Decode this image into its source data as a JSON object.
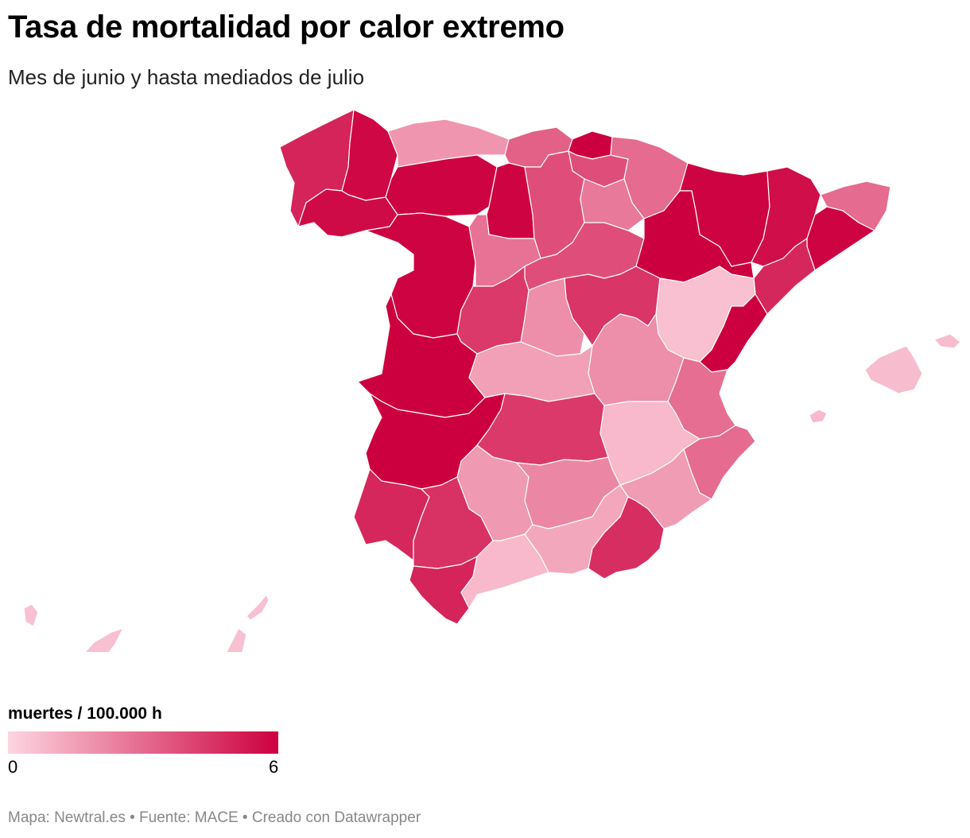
{
  "title": "Tasa de mortalidad por calor extremo",
  "subtitle": "Mes de junio y hasta mediados de julio",
  "legend": {
    "title": "muertes / 100.000 h",
    "min_label": "0",
    "max_label": "6",
    "min": 0,
    "max": 6,
    "color_low": "#fdd5e0",
    "color_high": "#cd003f"
  },
  "footer": "Mapa: Newtral.es • Fuente: MACE • Creado con Datawrapper",
  "regions": [
    {
      "id": "galicia-norte",
      "value": 5.0
    },
    {
      "id": "galicia-lugo",
      "value": 5.8
    },
    {
      "id": "galicia-sur",
      "value": 5.7
    },
    {
      "id": "asturias",
      "value": 1.8
    },
    {
      "id": "cantabria",
      "value": 3.3
    },
    {
      "id": "bizkaia",
      "value": 6.0
    },
    {
      "id": "alava-gipuzkoa",
      "value": 3.8
    },
    {
      "id": "navarra",
      "value": 3.0
    },
    {
      "id": "leon",
      "value": 5.9
    },
    {
      "id": "palencia",
      "value": 5.9
    },
    {
      "id": "burgos",
      "value": 3.8
    },
    {
      "id": "zamora-salamanca",
      "value": 5.9
    },
    {
      "id": "valladolid",
      "value": 2.8
    },
    {
      "id": "soria",
      "value": 2.6
    },
    {
      "id": "segovia",
      "value": 3.8
    },
    {
      "id": "huesca",
      "value": 5.9
    },
    {
      "id": "zaragoza",
      "value": 6.0
    },
    {
      "id": "lleida",
      "value": 5.6
    },
    {
      "id": "girona",
      "value": 3.0
    },
    {
      "id": "barcelona",
      "value": 5.9
    },
    {
      "id": "tarragona",
      "value": 4.9
    },
    {
      "id": "teruel",
      "value": 0.6
    },
    {
      "id": "castellon",
      "value": 6.0
    },
    {
      "id": "guadalajara",
      "value": 4.5
    },
    {
      "id": "madrid",
      "value": 2.0
    },
    {
      "id": "avila",
      "value": 4.4
    },
    {
      "id": "caceres",
      "value": 6.0
    },
    {
      "id": "toledo",
      "value": 1.5
    },
    {
      "id": "cuenca",
      "value": 2.0
    },
    {
      "id": "valencia",
      "value": 2.9
    },
    {
      "id": "badajoz",
      "value": 6.0
    },
    {
      "id": "ciudad-real",
      "value": 4.4
    },
    {
      "id": "albacete",
      "value": 0.8
    },
    {
      "id": "alicante",
      "value": 3.0
    },
    {
      "id": "huelva",
      "value": 4.9
    },
    {
      "id": "sevilla",
      "value": 4.6
    },
    {
      "id": "cordoba",
      "value": 1.7
    },
    {
      "id": "jaen",
      "value": 2.2
    },
    {
      "id": "murcia",
      "value": 1.6
    },
    {
      "id": "cadiz",
      "value": 5.0
    },
    {
      "id": "malaga",
      "value": 0.8
    },
    {
      "id": "granada",
      "value": 1.3
    },
    {
      "id": "almeria",
      "value": 4.7
    },
    {
      "id": "mallorca",
      "value": 0.7
    },
    {
      "id": "ibiza",
      "value": 0.8
    },
    {
      "id": "canarias",
      "value": 0.6
    }
  ]
}
